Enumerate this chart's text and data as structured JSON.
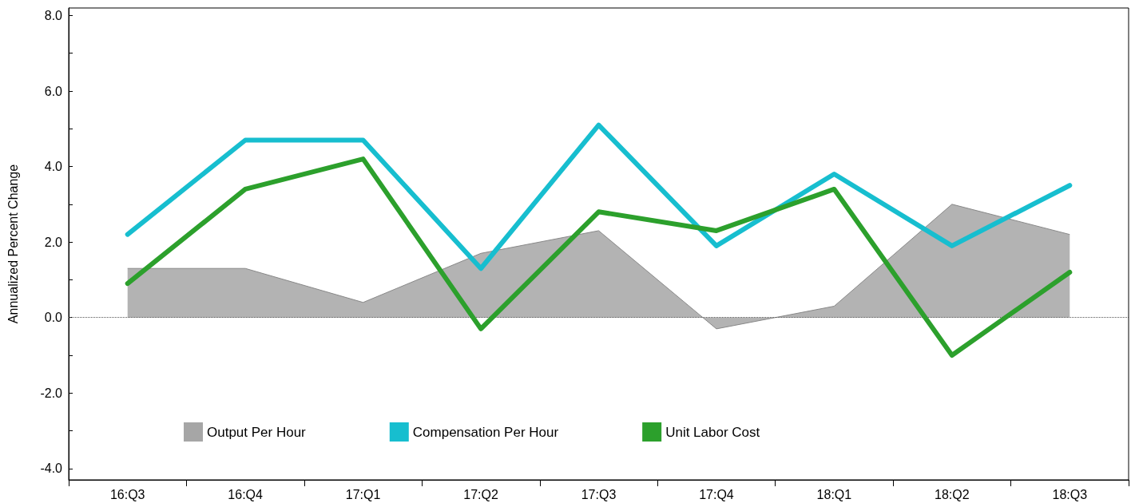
{
  "chart_data": {
    "type": "line",
    "ylabel": "Annualized Percent Change",
    "categories": [
      "16:Q3",
      "16:Q4",
      "17:Q1",
      "17:Q2",
      "17:Q3",
      "17:Q4",
      "18:Q1",
      "18:Q2",
      "18:Q3"
    ],
    "series": [
      {
        "name": "Output Per Hour",
        "type": "area",
        "color": "#a6a6a6",
        "values": [
          1.3,
          1.3,
          0.4,
          1.7,
          2.3,
          -0.3,
          0.3,
          3.0,
          2.2
        ]
      },
      {
        "name": "Compensation Per Hour",
        "color": "#17becf",
        "values": [
          2.2,
          4.7,
          4.7,
          1.3,
          5.1,
          1.9,
          3.8,
          1.9,
          3.5
        ]
      },
      {
        "name": "Unit Labor Cost",
        "color": "#2ca02c",
        "values": [
          0.9,
          3.4,
          4.2,
          -0.3,
          2.8,
          2.3,
          3.4,
          -1.0,
          1.2
        ]
      }
    ],
    "ylim": [
      -4.3,
      8.2
    ],
    "yticks": [
      {
        "value": -4,
        "label": "-4.0"
      },
      {
        "value": -3,
        "label": null
      },
      {
        "value": -2,
        "label": "-2.0"
      },
      {
        "value": -1,
        "label": null
      },
      {
        "value": 0,
        "label": "0.0"
      },
      {
        "value": 1,
        "label": null
      },
      {
        "value": 2,
        "label": "2.0"
      },
      {
        "value": 3,
        "label": null
      },
      {
        "value": 4,
        "label": "4.0"
      },
      {
        "value": 5,
        "label": null
      },
      {
        "value": 6,
        "label": "6.0"
      },
      {
        "value": 7,
        "label": null
      },
      {
        "value": 8,
        "label": "8.0"
      }
    ],
    "ref_lines": [
      {
        "axis": "y",
        "value": 0,
        "color": "#555555",
        "line_style": "dotted"
      }
    ],
    "grid": false,
    "legend": "bottom left",
    "marker": "none",
    "line_style": "solid"
  }
}
